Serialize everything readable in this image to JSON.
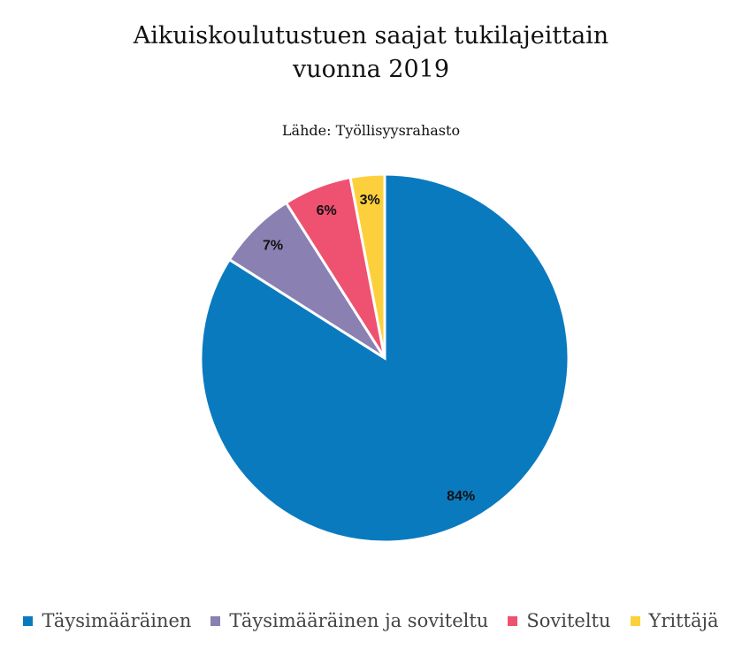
{
  "chart_data": {
    "type": "pie",
    "title": [
      "Aikuiskoulutustuen saajat tukilajeittain",
      "vuonna 2019"
    ],
    "subtitle": "Lähde: Työllisyysrahasto",
    "categories": [
      "Täysimääräinen",
      "Täysimääräinen ja soviteltu",
      "Soviteltu",
      "Yrittäjä"
    ],
    "values": [
      84,
      7,
      6,
      3
    ],
    "value_labels": [
      "84%",
      "7%",
      "6%",
      "3%"
    ],
    "colors": [
      "#0a7abf",
      "#8a80b2",
      "#ee5270",
      "#fcd03c"
    ]
  }
}
